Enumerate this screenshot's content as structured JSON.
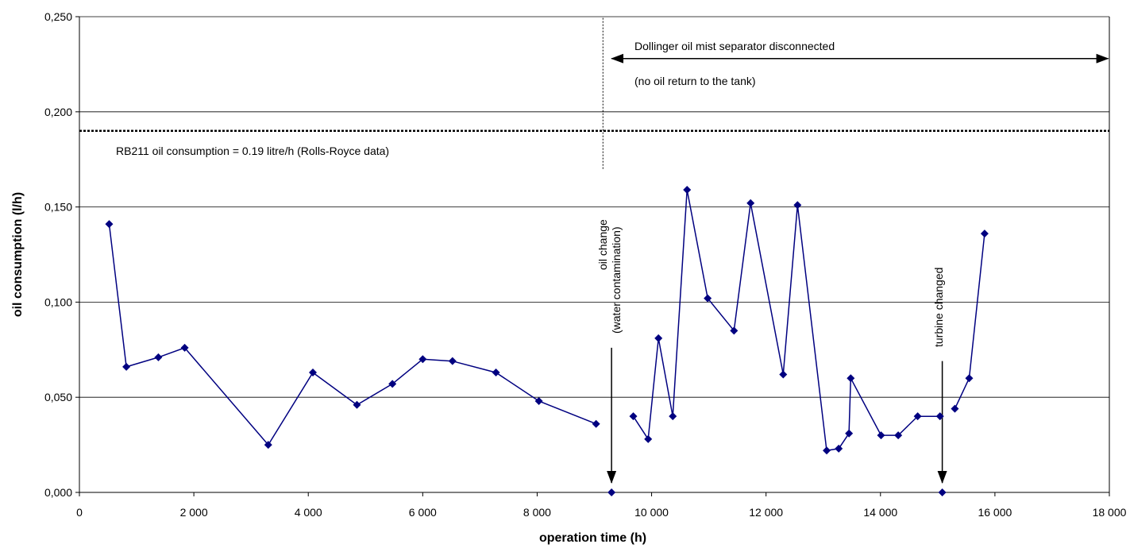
{
  "chart_data": {
    "type": "line",
    "xlabel": "operation time (h)",
    "ylabel": "oil consumption (l/h)",
    "xlim": [
      0,
      18000
    ],
    "ylim": [
      0,
      0.25
    ],
    "grid": "horizontal",
    "x_ticks": [
      0,
      2000,
      4000,
      6000,
      8000,
      10000,
      12000,
      14000,
      16000,
      18000
    ],
    "x_tick_labels": [
      "0",
      "2 000",
      "4 000",
      "6 000",
      "8 000",
      "10 000",
      "12 000",
      "14 000",
      "16 000",
      "18 000"
    ],
    "y_ticks": [
      0,
      0.05,
      0.1,
      0.15,
      0.2,
      0.25
    ],
    "y_tick_labels": [
      "0,000",
      "0,050",
      "0,100",
      "0,150",
      "0,200",
      "0,250"
    ],
    "series_color": "#000080",
    "segments": [
      [
        {
          "x": 520,
          "y": 0.141
        },
        {
          "x": 820,
          "y": 0.066
        },
        {
          "x": 1380,
          "y": 0.071
        },
        {
          "x": 1840,
          "y": 0.076
        },
        {
          "x": 3300,
          "y": 0.025
        },
        {
          "x": 4080,
          "y": 0.063
        },
        {
          "x": 4850,
          "y": 0.046
        },
        {
          "x": 5470,
          "y": 0.057
        },
        {
          "x": 6000,
          "y": 0.07
        },
        {
          "x": 6520,
          "y": 0.069
        },
        {
          "x": 7280,
          "y": 0.063
        },
        {
          "x": 8030,
          "y": 0.048
        },
        {
          "x": 9030,
          "y": 0.036
        }
      ],
      [
        {
          "x": 9300,
          "y": 0.0
        }
      ],
      [
        {
          "x": 9680,
          "y": 0.04
        },
        {
          "x": 9940,
          "y": 0.028
        },
        {
          "x": 10120,
          "y": 0.081
        },
        {
          "x": 10370,
          "y": 0.04
        },
        {
          "x": 10620,
          "y": 0.159
        },
        {
          "x": 10980,
          "y": 0.102
        },
        {
          "x": 11440,
          "y": 0.085
        },
        {
          "x": 11730,
          "y": 0.152
        },
        {
          "x": 12300,
          "y": 0.062
        },
        {
          "x": 12550,
          "y": 0.151
        },
        {
          "x": 13060,
          "y": 0.022
        },
        {
          "x": 13270,
          "y": 0.023
        },
        {
          "x": 13450,
          "y": 0.031
        },
        {
          "x": 13480,
          "y": 0.06
        },
        {
          "x": 14010,
          "y": 0.03
        },
        {
          "x": 14310,
          "y": 0.03
        },
        {
          "x": 14650,
          "y": 0.04
        },
        {
          "x": 15040,
          "y": 0.04
        }
      ],
      [
        {
          "x": 15080,
          "y": 0.0
        }
      ],
      [
        {
          "x": 15300,
          "y": 0.044
        },
        {
          "x": 15550,
          "y": 0.06
        },
        {
          "x": 15820,
          "y": 0.136
        }
      ]
    ],
    "reference_line": {
      "y": 0.19,
      "label": "RB211 oil consumption = 0.19 litre/h (Rolls-Royce data)"
    },
    "vertical_marker": {
      "x": 9150,
      "y_from": 0.17,
      "y_to": 0.25
    },
    "range_annotation": {
      "x_from": 9300,
      "x_to": 17980,
      "y": 0.228,
      "text_line1": "Dollinger oil mist separator disconnected",
      "text_line2": "(no oil return to the tank)"
    },
    "event_annotations": [
      {
        "x": 9300,
        "arrow_top_y": 0.076,
        "text_line1": "oil change",
        "text_line2": "(water contamination)"
      },
      {
        "x": 15080,
        "arrow_top_y": 0.069,
        "text_line1": "turbine changed",
        "text_line2": ""
      }
    ]
  }
}
